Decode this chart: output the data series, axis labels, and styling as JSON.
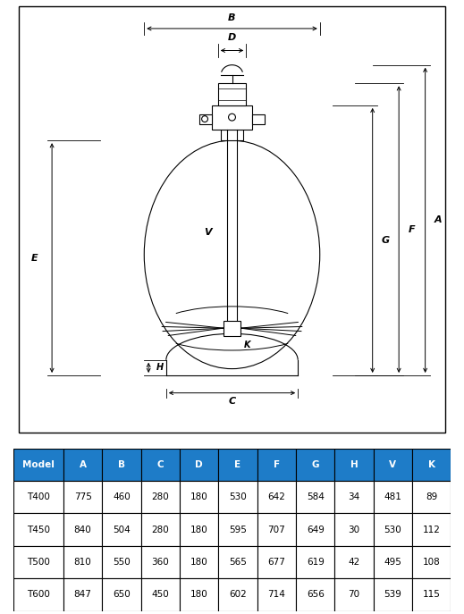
{
  "table_headers": [
    "Model",
    "A",
    "B",
    "C",
    "D",
    "E",
    "F",
    "G",
    "H",
    "V",
    "K"
  ],
  "table_data": [
    [
      "T400",
      "775",
      "460",
      "280",
      "180",
      "530",
      "642",
      "584",
      "34",
      "481",
      "89"
    ],
    [
      "T450",
      "840",
      "504",
      "280",
      "180",
      "595",
      "707",
      "649",
      "30",
      "530",
      "112"
    ],
    [
      "T500",
      "810",
      "550",
      "360",
      "180",
      "565",
      "677",
      "619",
      "42",
      "495",
      "108"
    ],
    [
      "T600",
      "847",
      "650",
      "450",
      "180",
      "602",
      "714",
      "656",
      "70",
      "539",
      "115"
    ]
  ],
  "header_bg": "#1E7CC8",
  "header_fg": "#FFFFFF",
  "border_color": "#000000",
  "line_color": "#000000"
}
